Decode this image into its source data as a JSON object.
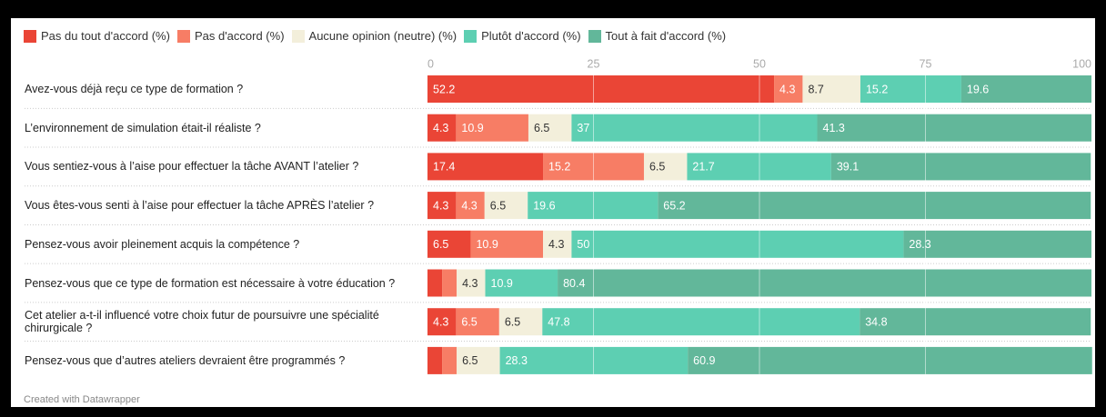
{
  "chart_data": {
    "type": "stacked-bar-horizontal",
    "categories": [
      "Avez-vous déjà reçu ce type de formation ?",
      "L’environnement de simulation était-il réaliste ?",
      "Vous sentiez-vous à l’aise pour effectuer la tâche AVANT l’atelier ?",
      "Vous êtes-vous senti à l’aise pour effectuer la tâche APRÈS l’atelier ?",
      "Pensez-vous avoir pleinement acquis la compétence ?",
      "Pensez-vous que ce type de formation est nécessaire à votre éducation ?",
      "Cet atelier a-t-il influencé votre choix futur de poursuivre une spécialité chirurgicale ?",
      "Pensez-vous que d’autres ateliers devraient être programmés ?"
    ],
    "series": [
      {
        "name": "Pas du tout d'accord (%)",
        "color": "#ea4536",
        "values": [
          52.2,
          4.3,
          17.4,
          4.3,
          6.5,
          2.2,
          4.3,
          2.2
        ]
      },
      {
        "name": "Pas d'accord (%)",
        "color": "#f77d65",
        "values": [
          4.3,
          10.9,
          15.2,
          4.3,
          10.9,
          2.2,
          6.5,
          2.2
        ]
      },
      {
        "name": "Aucune opinion (neutre) (%)",
        "color": "#f3efdb",
        "values": [
          8.7,
          6.5,
          6.5,
          6.5,
          4.3,
          4.3,
          6.5,
          6.5
        ]
      },
      {
        "name": "Plutôt d'accord (%)",
        "color": "#5dcfb2",
        "values": [
          15.2,
          37,
          21.7,
          19.6,
          50,
          10.9,
          47.8,
          28.3
        ]
      },
      {
        "name": "Tout à fait d'accord (%)",
        "color": "#62b79a",
        "values": [
          19.6,
          41.3,
          39.1,
          65.2,
          28.3,
          80.4,
          34.8,
          60.9
        ]
      }
    ],
    "xlim": [
      0,
      100
    ],
    "xticks": [
      0,
      25,
      50,
      75,
      100
    ],
    "grid": true,
    "credit": "Created with Datawrapper"
  }
}
